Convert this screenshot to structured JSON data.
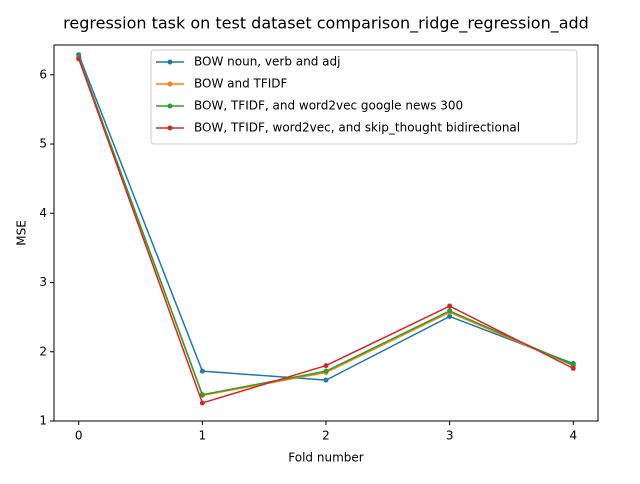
{
  "chart_data": {
    "type": "line",
    "title": "regression task on test dataset comparison_ridge_regression_add",
    "x_label": "Fold number",
    "y_label": "MSE",
    "x": [
      0,
      1,
      2,
      3,
      4
    ],
    "series": [
      {
        "name": "BOW noun, verb and adj",
        "color": "#1f77b4",
        "values": [
          6.29,
          1.72,
          1.59,
          2.51,
          1.83
        ]
      },
      {
        "name": "BOW and TFIDF",
        "color": "#ff7f0e",
        "values": [
          6.25,
          1.37,
          1.7,
          2.57,
          1.8
        ]
      },
      {
        "name": "BOW, TFIDF, and word2vec google news 300",
        "color": "#2ca02c",
        "values": [
          6.25,
          1.38,
          1.72,
          2.59,
          1.81
        ]
      },
      {
        "name": "BOW, TFIDF, word2vec, and skip_thought bidirectional",
        "color": "#d62728",
        "values": [
          6.23,
          1.26,
          1.8,
          2.66,
          1.76
        ]
      }
    ],
    "xlim": [
      -0.2,
      4.2
    ],
    "ylim": [
      1.0,
      6.43
    ],
    "xticks": [
      0,
      1,
      2,
      3,
      4
    ],
    "yticks": [
      1,
      2,
      3,
      4,
      5,
      6
    ],
    "legend": "upper center",
    "grid": false
  }
}
